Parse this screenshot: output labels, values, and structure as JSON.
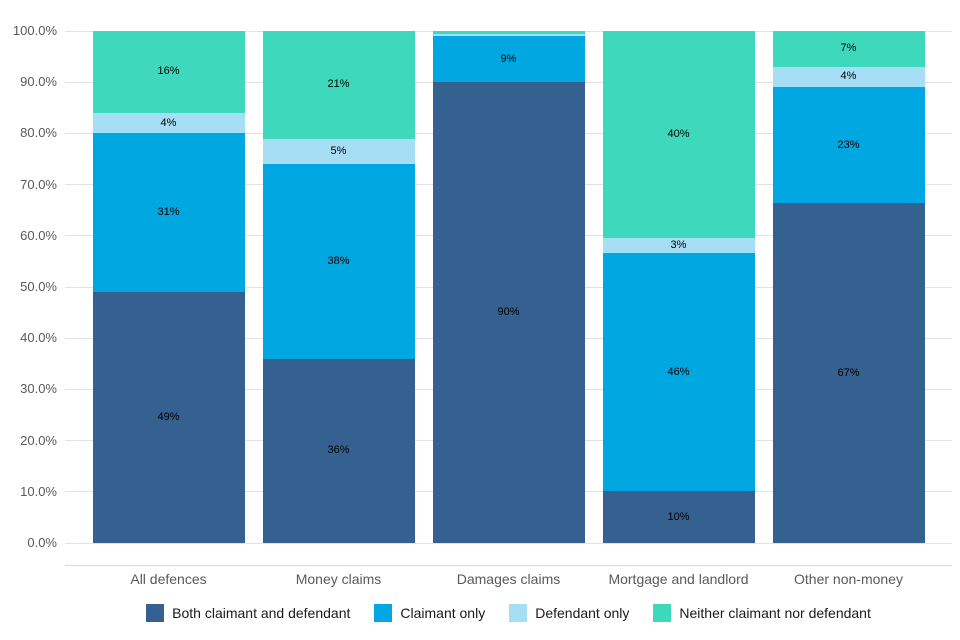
{
  "palette": {
    "background": "#ffffff",
    "gridline": "#e2e2e2",
    "axis_line": "#d9d9d9",
    "tick_text": "#595959",
    "category_text": "#595959",
    "legend_text": "#1a1a1a",
    "data_label_text": "#000000"
  },
  "chart_data": {
    "type": "bar",
    "variant": "stacked-100-percent",
    "title": "",
    "xlabel": "",
    "ylabel": "",
    "grid": true,
    "legend_position": "bottom",
    "categories": [
      "All defences",
      "Money claims",
      "Damages claims",
      "Mortgage and landlord",
      "Other non-money"
    ],
    "series": [
      {
        "name": "Both claimant and defendant",
        "color": "#34618F",
        "values": [
          49,
          36,
          90,
          10,
          67
        ],
        "labels": [
          "49%",
          "36%",
          "90%",
          "10%",
          "67%"
        ]
      },
      {
        "name": "Claimant only",
        "color": "#00A7E1",
        "values": [
          31,
          38,
          9,
          46,
          23
        ],
        "labels": [
          "31%",
          "38%",
          "9%",
          "46%",
          "23%"
        ]
      },
      {
        "name": "Defendant only",
        "color": "#A6DEF5",
        "values": [
          4,
          5,
          0.5,
          3,
          4
        ],
        "labels": [
          "4%",
          "5%",
          "",
          "3%",
          "4%"
        ]
      },
      {
        "name": "Neither claimant nor defendant",
        "color": "#3ED9BD",
        "values": [
          16,
          21,
          0.5,
          40,
          7
        ],
        "labels": [
          "16%",
          "21%",
          "",
          "40%",
          "7%"
        ]
      }
    ],
    "y_axis": {
      "min": 0,
      "max": 100,
      "ticks": [
        "0.0%",
        "10.0%",
        "20.0%",
        "30.0%",
        "40.0%",
        "50.0%",
        "60.0%",
        "70.0%",
        "80.0%",
        "90.0%",
        "100.0%"
      ]
    },
    "legend_entries": [
      "Both claimant and defendant",
      "Claimant only",
      "Defendant only",
      "Neither claimant nor defendant"
    ]
  }
}
